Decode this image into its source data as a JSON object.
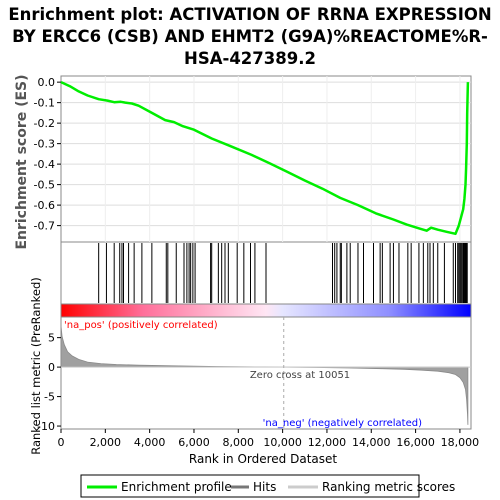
{
  "chart_data": {
    "type": "line",
    "title_lines": [
      "Enrichment plot: ACTIVATION OF RRNA EXPRESSION",
      "BY ERCC6 (CSB) AND EHMT2 (G9A)%REACTOME%R-",
      "HSA-427389.2"
    ],
    "es_panel": {
      "ylabel": "Enrichment score (ES)",
      "ylim": [
        -0.78,
        0.03
      ],
      "yticks": [
        "0.0",
        "-0.1",
        "-0.2",
        "-0.3",
        "-0.4",
        "-0.5",
        "-0.6",
        "-0.7"
      ],
      "ytick_values": [
        0.0,
        -0.1,
        -0.2,
        -0.3,
        -0.4,
        -0.5,
        -0.6,
        -0.7
      ],
      "series": [
        {
          "name": "Enrichment profile",
          "color": "#00ee00",
          "x": [
            0,
            400,
            800,
            1200,
            1700,
            2100,
            2400,
            2700,
            2900,
            3200,
            3500,
            4100,
            4700,
            5100,
            5500,
            6000,
            6800,
            7600,
            8600,
            9400,
            10200,
            11000,
            11800,
            12600,
            13400,
            14200,
            15000,
            15600,
            16200,
            16500,
            16700,
            17000,
            17400,
            17800,
            17950,
            18050,
            18150,
            18200,
            18250,
            18280,
            18310,
            18330,
            18360
          ],
          "y": [
            0.0,
            -0.02,
            -0.045,
            -0.065,
            -0.083,
            -0.09,
            -0.098,
            -0.096,
            -0.1,
            -0.104,
            -0.115,
            -0.15,
            -0.185,
            -0.195,
            -0.215,
            -0.232,
            -0.275,
            -0.31,
            -0.355,
            -0.395,
            -0.437,
            -0.48,
            -0.52,
            -0.565,
            -0.6,
            -0.64,
            -0.67,
            -0.695,
            -0.715,
            -0.725,
            -0.71,
            -0.72,
            -0.73,
            -0.74,
            -0.7,
            -0.66,
            -0.62,
            -0.57,
            -0.5,
            -0.42,
            -0.3,
            -0.15,
            0.0
          ]
        }
      ]
    },
    "hits_panel": {
      "hits": [
        1700,
        2050,
        2400,
        2650,
        2750,
        2820,
        3050,
        3300,
        3650,
        4100,
        4750,
        4820,
        5200,
        5550,
        5680,
        5780,
        5850,
        5950,
        6050,
        6750,
        6800,
        7100,
        7250,
        7400,
        7550,
        7950,
        8250,
        8550,
        8750,
        9250,
        12250,
        12350,
        12450,
        12600,
        12650,
        12900,
        13050,
        13400,
        13650,
        14100,
        14400,
        14500,
        14850,
        15000,
        15250,
        15650,
        15800,
        16150,
        16350,
        16550,
        16650,
        16800,
        17000,
        17300,
        17700,
        17800,
        17900,
        17950,
        18000,
        18050,
        18100,
        18150,
        18180,
        18210,
        18240,
        18270,
        18300,
        18330
      ]
    },
    "metric_panel": {
      "ylabel": "Ranked list metric (PreRanked)",
      "ylim": [
        -10.5,
        8.5
      ],
      "yticks": [
        "5",
        "0",
        "-5",
        "-10"
      ],
      "ytick_values": [
        5,
        0,
        -5,
        -10
      ],
      "zero_cross_text": "Zero cross at 10051",
      "zero_cross_x": 10051,
      "pos_label": "'na_pos' (positively correlated)",
      "neg_label": "'na_neg' (negatively correlated)",
      "pos_color": "#ff0000",
      "neg_color": "#0000ff",
      "curve_x": [
        0,
        50,
        150,
        300,
        500,
        800,
        1200,
        1800,
        2500,
        3500,
        5000,
        7000,
        9000,
        10051,
        11500,
        13000,
        14500,
        15500,
        16300,
        17000,
        17500,
        17800,
        18000,
        18150,
        18250,
        18300,
        18340,
        18360
      ],
      "curve_y": [
        7.0,
        5.2,
        3.8,
        2.6,
        1.9,
        1.3,
        0.85,
        0.6,
        0.45,
        0.33,
        0.22,
        0.1,
        0.03,
        0.0,
        -0.06,
        -0.15,
        -0.27,
        -0.38,
        -0.52,
        -0.7,
        -0.95,
        -1.25,
        -1.8,
        -2.6,
        -3.8,
        -5.5,
        -8.0,
        -9.8
      ]
    },
    "xaxis": {
      "xlabel": "Rank in Ordered Dataset",
      "xlim": [
        0,
        18500
      ],
      "xticks": [
        "0",
        "2,000",
        "4,000",
        "6,000",
        "8,000",
        "10,000",
        "12,000",
        "14,000",
        "16,000",
        "18,000"
      ],
      "xtick_values": [
        0,
        2000,
        4000,
        6000,
        8000,
        10000,
        12000,
        14000,
        16000,
        18000
      ]
    },
    "legend": {
      "placement": "bottom",
      "items": [
        {
          "label": "Enrichment profile",
          "color": "#00ee00"
        },
        {
          "label": "Hits",
          "color": "#777777"
        },
        {
          "label": "Ranking metric scores",
          "color": "#cccccc"
        }
      ]
    }
  }
}
